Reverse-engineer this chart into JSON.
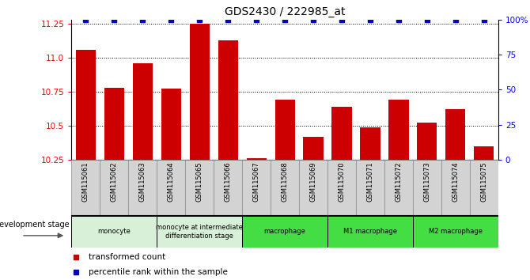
{
  "title": "GDS2430 / 222985_at",
  "samples": [
    "GSM115061",
    "GSM115062",
    "GSM115063",
    "GSM115064",
    "GSM115065",
    "GSM115066",
    "GSM115067",
    "GSM115068",
    "GSM115069",
    "GSM115070",
    "GSM115071",
    "GSM115072",
    "GSM115073",
    "GSM115074",
    "GSM115075"
  ],
  "bar_values": [
    11.06,
    10.78,
    10.96,
    10.77,
    11.25,
    11.13,
    10.26,
    10.69,
    10.42,
    10.64,
    10.49,
    10.69,
    10.52,
    10.62,
    10.35
  ],
  "percentile_values": [
    100,
    100,
    100,
    100,
    100,
    100,
    100,
    100,
    100,
    100,
    100,
    100,
    100,
    100,
    100
  ],
  "bar_color": "#cc0000",
  "percentile_color": "#0000cc",
  "ylim_left": [
    10.25,
    11.28
  ],
  "ylim_right": [
    0,
    100
  ],
  "yticks_left": [
    10.25,
    10.5,
    10.75,
    11.0,
    11.25
  ],
  "yticks_right": [
    0,
    25,
    50,
    75,
    100
  ],
  "groups": [
    {
      "label": "monocyte",
      "start": 0,
      "end": 3,
      "color": "#d8f0d8"
    },
    {
      "label": "monocyte at intermediate\ndifferentiation stage",
      "start": 3,
      "end": 6,
      "color": "#d8f0d8"
    },
    {
      "label": "macrophage",
      "start": 6,
      "end": 9,
      "color": "#44dd44"
    },
    {
      "label": "M1 macrophage",
      "start": 9,
      "end": 12,
      "color": "#44dd44"
    },
    {
      "label": "M2 macrophage",
      "start": 12,
      "end": 15,
      "color": "#44dd44"
    }
  ],
  "dev_stage_label": "development stage",
  "legend": [
    {
      "label": "transformed count",
      "color": "#cc0000"
    },
    {
      "label": "percentile rank within the sample",
      "color": "#0000cc"
    }
  ],
  "sample_bg_color": "#d3d3d3",
  "sample_border_color": "#888888"
}
